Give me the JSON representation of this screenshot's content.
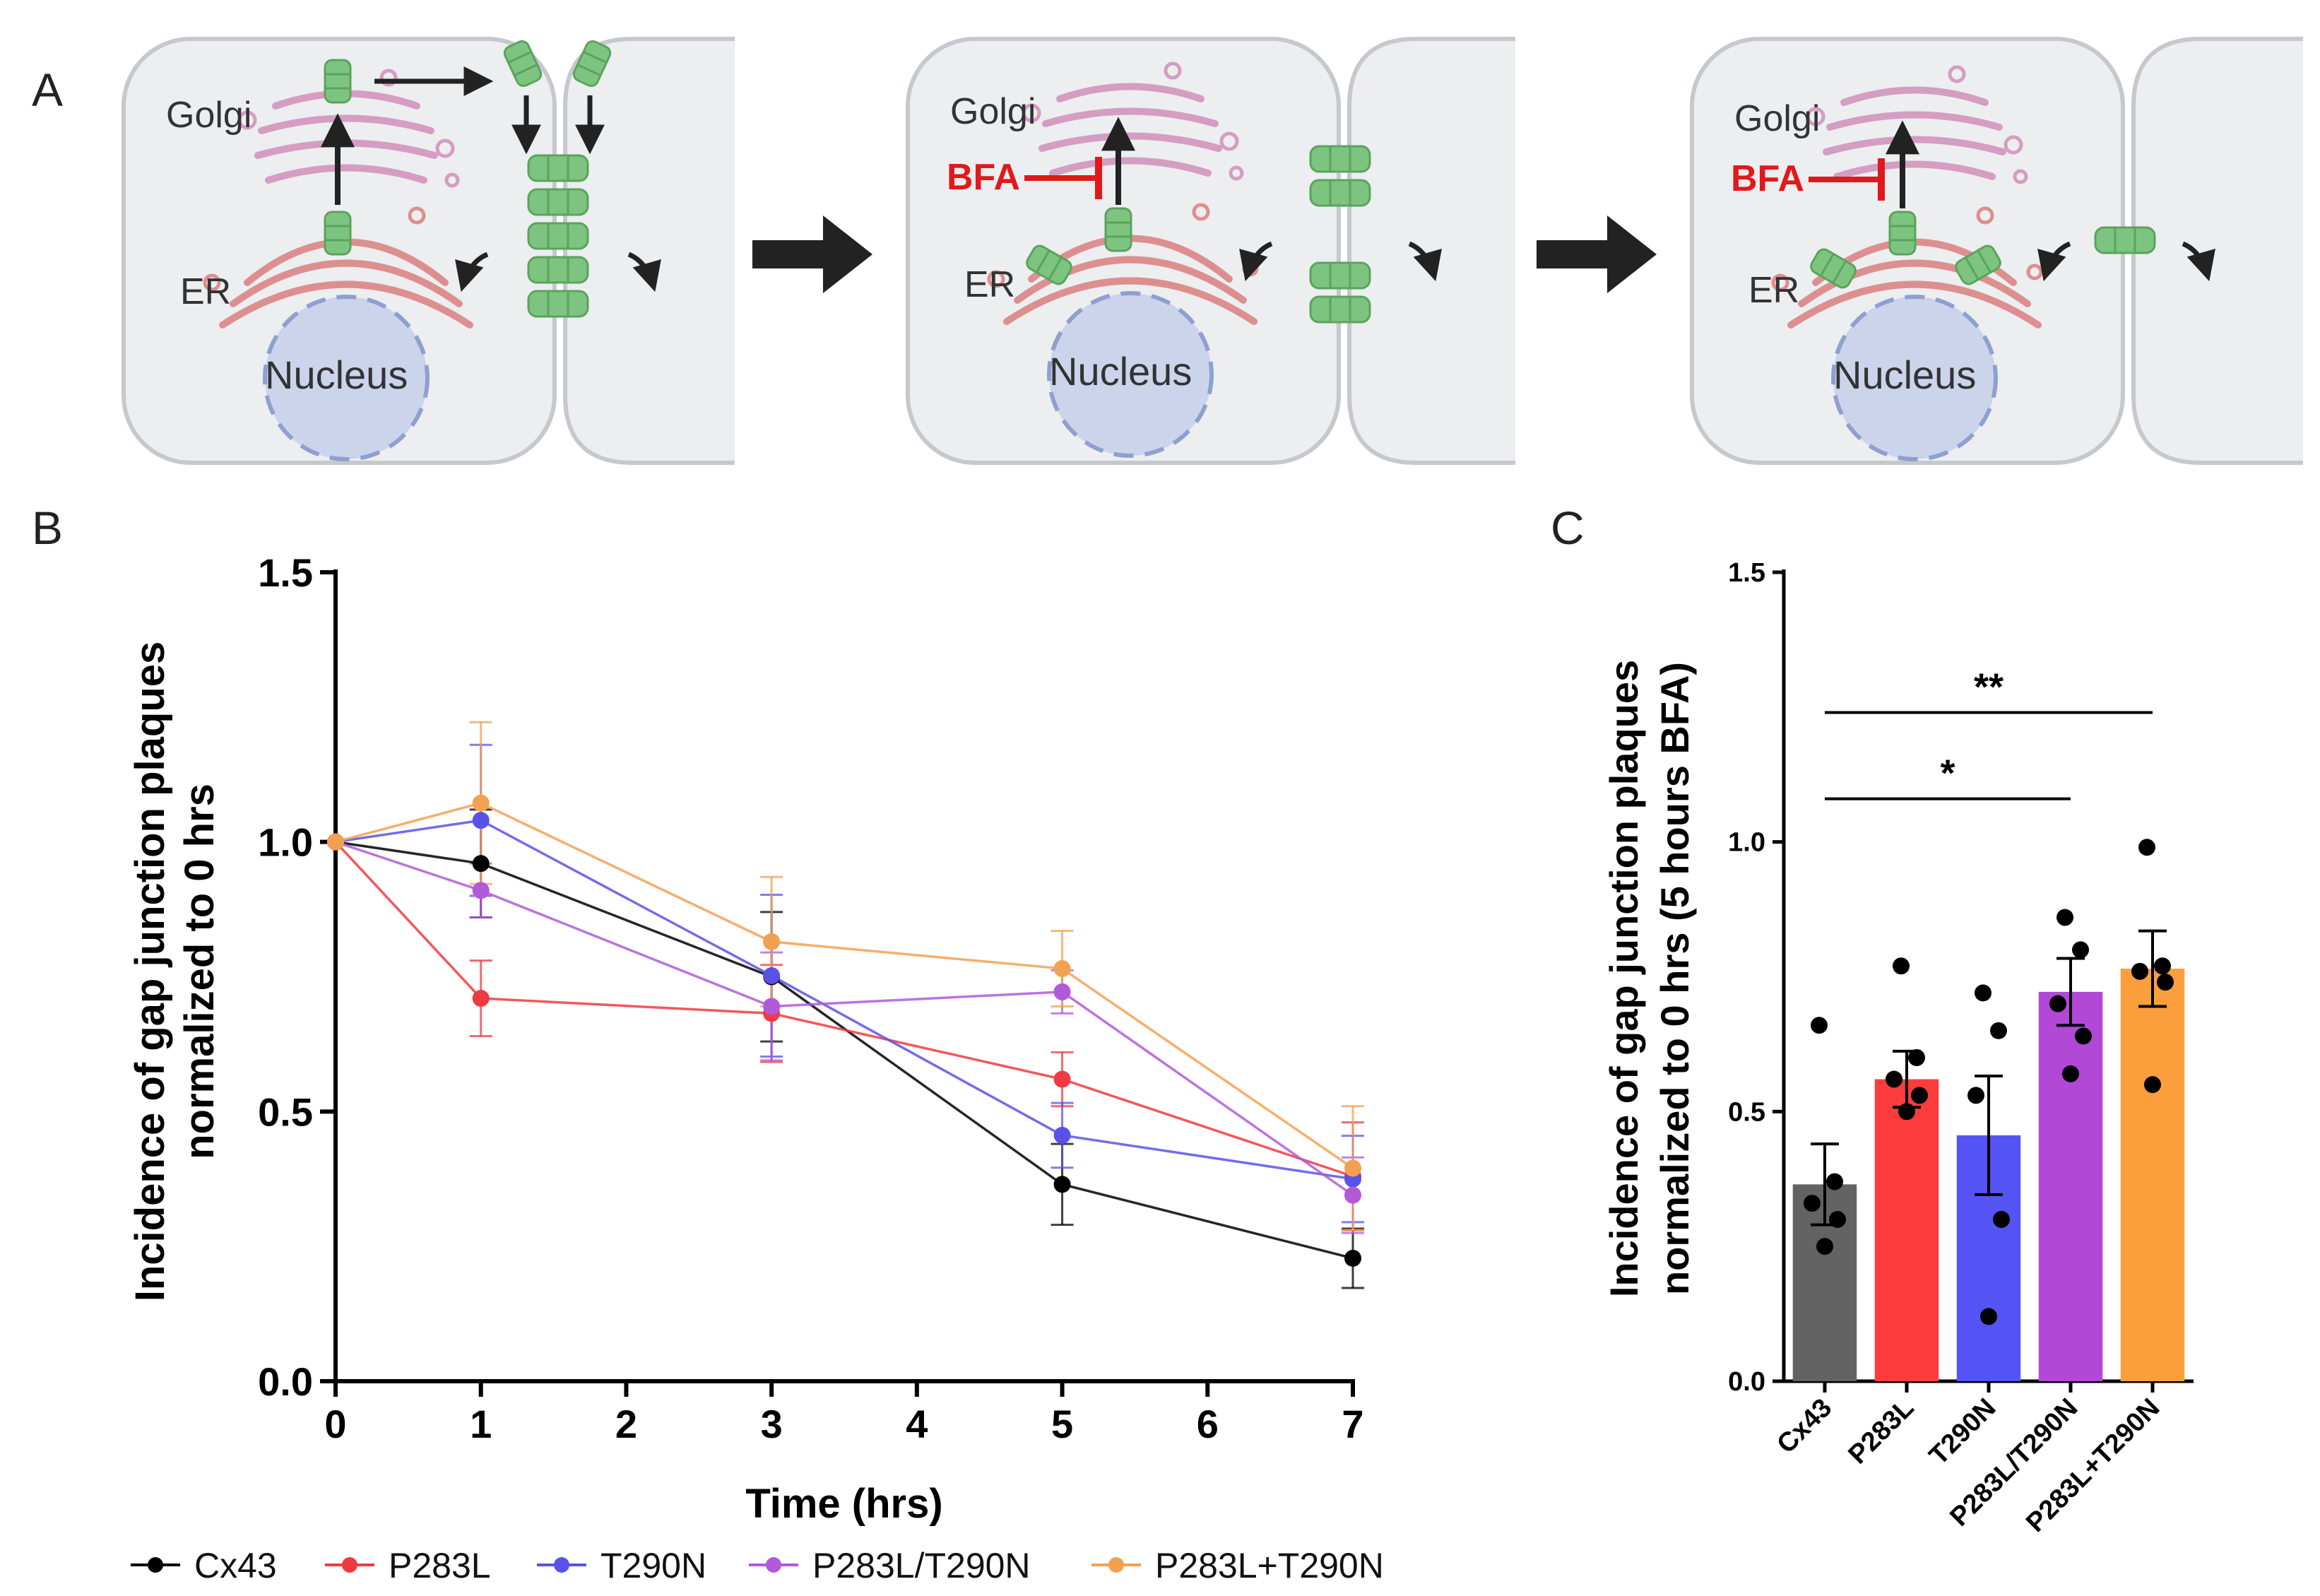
{
  "panels": {
    "a": {
      "letter": "A"
    },
    "b": {
      "letter": "B"
    },
    "c": {
      "letter": "C"
    }
  },
  "diagram": {
    "golgi_label": "Golgi",
    "er_label": "ER",
    "nucleus_label": "Nucleus",
    "bfa_label": "BFA"
  },
  "colors": {
    "Cx43": "#000000",
    "P283L": "#ee3b41",
    "T290N": "#5a52e8",
    "P283L/T290N": "#b05ad8",
    "P283L+T290N": "#f4a052",
    "bar_Cx43": "#636363",
    "bar_P283L": "#fc3c3c",
    "bar_T290N": "#5454f5",
    "bar_P283L/T290N": "#b148d6",
    "bar_P283L+T290N": "#fb9f3c",
    "connexon": "#7cc47f",
    "golgi": "#d59dc2",
    "er": "#dd8f90",
    "nucleus": "#ccd4ec",
    "cell": "#eceef0"
  },
  "chart_data": [
    {
      "id": "B",
      "type": "line",
      "xlabel": "Time (hrs)",
      "ylabel_line1": "Incidence of gap junction plaques",
      "ylabel_line2": "normalized to 0 hrs",
      "xlim": [
        0,
        7
      ],
      "ylim": [
        0,
        1.5
      ],
      "xticks": [
        "0",
        "1",
        "2",
        "3",
        "4",
        "5",
        "6",
        "7"
      ],
      "yticks": [
        "0.0",
        "0.5",
        "1.0",
        "1.5"
      ],
      "x": [
        0,
        1,
        3,
        5,
        7
      ],
      "series": [
        {
          "name": "Cx43",
          "values": [
            1.0,
            0.96,
            0.75,
            0.365,
            0.228
          ],
          "errors": [
            0,
            0.1,
            0.12,
            0.075,
            0.055
          ]
        },
        {
          "name": "P283L",
          "values": [
            1.0,
            0.71,
            0.682,
            0.56,
            0.38
          ],
          "errors": [
            0,
            0.07,
            0.09,
            0.05,
            0.1
          ]
        },
        {
          "name": "T290N",
          "values": [
            1.0,
            1.04,
            0.752,
            0.456,
            0.375
          ],
          "errors": [
            0,
            0.14,
            0.15,
            0.06,
            0.08
          ]
        },
        {
          "name": "P283L/T290N",
          "values": [
            1.0,
            0.91,
            0.695,
            0.722,
            0.345
          ],
          "errors": [
            0,
            0.05,
            0.1,
            0.04,
            0.07
          ]
        },
        {
          "name": "P283L+T290N",
          "values": [
            1.0,
            1.072,
            0.815,
            0.765,
            0.395
          ],
          "errors": [
            0,
            0.15,
            0.12,
            0.07,
            0.115
          ]
        }
      ],
      "legend_position": "bottom"
    },
    {
      "id": "C",
      "type": "bar",
      "ylabel_line1": "Incidence of gap junction plaques",
      "ylabel_line2": "normalized to 0 hrs (5 hours BFA)",
      "ylim": [
        0,
        1.5
      ],
      "yticks": [
        "0.0",
        "0.5",
        "1.0",
        "1.5"
      ],
      "categories": [
        "Cx43",
        "P283L",
        "T290N",
        "P283L/T290N",
        "P283L+T290N"
      ],
      "values": [
        0.365,
        0.56,
        0.456,
        0.722,
        0.765
      ],
      "errors": [
        0.075,
        0.052,
        0.11,
        0.062,
        0.07
      ],
      "points": [
        [
          0.66,
          0.37,
          0.33,
          0.3,
          0.25
        ],
        [
          0.77,
          0.6,
          0.56,
          0.53,
          0.5
        ],
        [
          0.72,
          0.65,
          0.53,
          0.3,
          0.12
        ],
        [
          0.86,
          0.8,
          0.7,
          0.64,
          0.57
        ],
        [
          0.99,
          0.77,
          0.76,
          0.74,
          0.55
        ]
      ],
      "significance": [
        {
          "from": "Cx43",
          "to": "P283L+T290N",
          "label": "**"
        },
        {
          "from": "Cx43",
          "to": "P283L/T290N",
          "label": "*"
        }
      ]
    }
  ]
}
